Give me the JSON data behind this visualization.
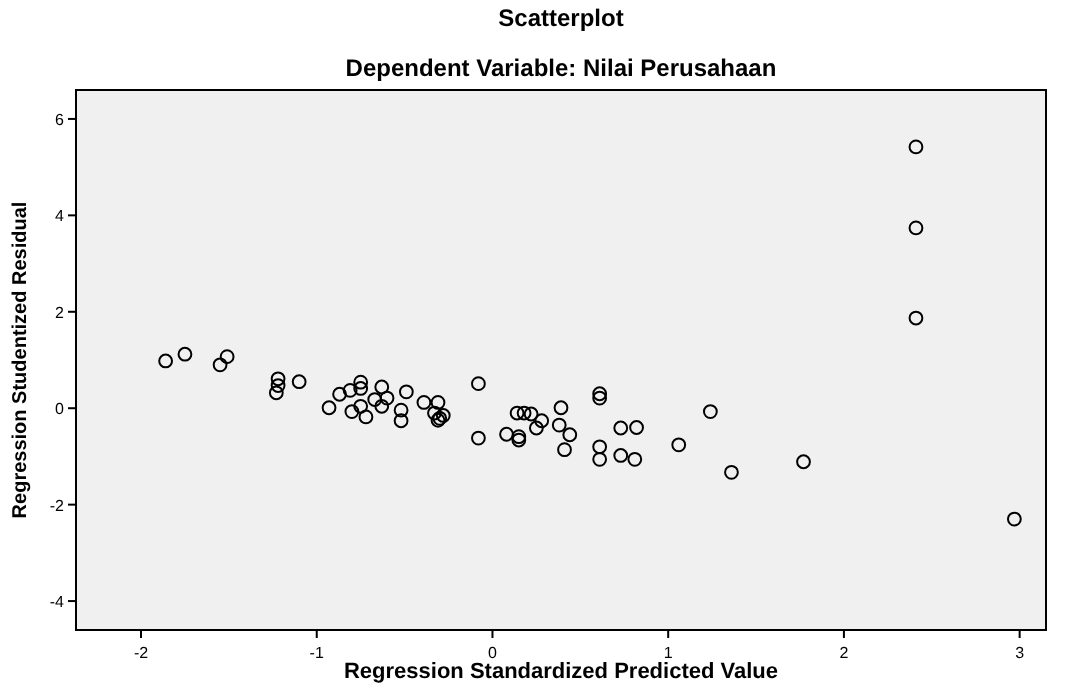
{
  "chart_data": {
    "type": "scatter",
    "title": "Scatterplot",
    "subtitle": "Dependent Variable: Nilai Perusahaan",
    "xlabel": "Regression Standardized Predicted Value",
    "ylabel": "Regression Studentized Residual",
    "xlim": [
      -2.37,
      3.15
    ],
    "ylim": [
      -4.6,
      6.6
    ],
    "xticks": [
      -2,
      -1,
      0,
      1,
      2,
      3
    ],
    "yticks": [
      6,
      4,
      2,
      0,
      -2,
      -4
    ],
    "grid": false,
    "marker": "circle",
    "series": [
      {
        "color": "#000000",
        "x": [
          -1.86,
          -1.75,
          -1.55,
          -1.51,
          -1.22,
          -1.22,
          -1.23,
          -1.1,
          -0.93,
          -0.87,
          -0.81,
          -0.75,
          -0.75,
          -0.8,
          -0.75,
          -0.72,
          -0.67,
          -0.63,
          -0.63,
          -0.6,
          -0.52,
          -0.52,
          -0.49,
          -0.39,
          -0.31,
          -0.33,
          -0.3,
          -0.28,
          -0.31,
          -0.08,
          -0.08,
          0.08,
          0.14,
          0.18,
          0.22,
          0.15,
          0.15,
          0.25,
          0.28,
          0.38,
          0.39,
          0.44,
          0.41,
          0.61,
          0.61,
          0.61,
          0.61,
          0.73,
          0.82,
          0.73,
          0.81,
          1.06,
          1.24,
          1.36,
          1.77,
          2.41,
          2.41,
          2.41,
          2.97
        ],
        "values": [
          0.98,
          1.12,
          0.9,
          1.07,
          0.61,
          0.47,
          0.32,
          0.55,
          0.01,
          0.29,
          0.37,
          0.54,
          0.41,
          -0.07,
          0.04,
          -0.18,
          0.18,
          0.44,
          0.04,
          0.21,
          -0.04,
          -0.26,
          0.34,
          0.12,
          0.12,
          -0.1,
          -0.21,
          -0.15,
          -0.25,
          0.51,
          -0.62,
          -0.54,
          -0.1,
          -0.1,
          -0.12,
          -0.59,
          -0.66,
          -0.41,
          -0.26,
          -0.35,
          0.01,
          -0.55,
          -0.86,
          0.3,
          0.21,
          -0.8,
          -1.06,
          -0.41,
          -0.4,
          -0.98,
          -1.06,
          -0.76,
          -0.07,
          -1.33,
          -1.11,
          5.42,
          3.74,
          1.87,
          -2.3
        ]
      }
    ]
  }
}
